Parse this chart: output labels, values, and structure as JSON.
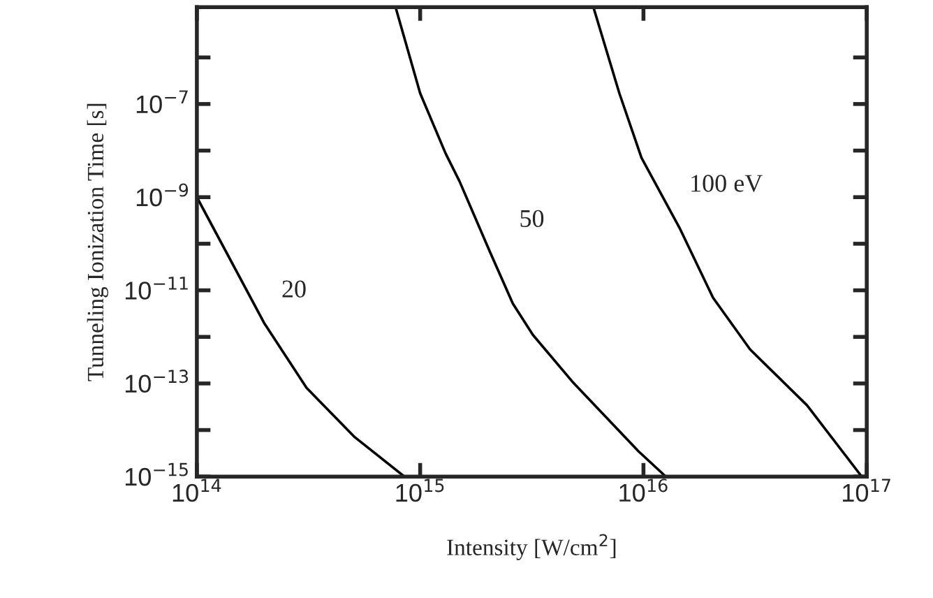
{
  "chart_data": {
    "type": "line",
    "xlabel": "Intensity [W/cm$^{2}$]",
    "ylabel": "Tunneling Ionization Time [s]",
    "log": "xy",
    "grid": false,
    "marker": "none",
    "line_style": "solid",
    "xlim": [
      100000000000000.0,
      1e+17
    ],
    "ylim": [
      1e-15,
      1.2e-05
    ],
    "xticks": [
      {
        "value": 100000000000000.0,
        "label": "10$^{14}$"
      },
      {
        "value": 1000000000000000.0,
        "label": "10$^{15}$"
      },
      {
        "value": 1e+16,
        "label": "10$^{16}$"
      },
      {
        "value": 1e+17,
        "label": "10$^{17}$"
      }
    ],
    "yticks": [
      {
        "value": 1e-15,
        "label": "10$^{−15}$"
      },
      {
        "value": 1e-14,
        "label": null
      },
      {
        "value": 1e-13,
        "label": "10$^{−13}$"
      },
      {
        "value": 1e-12,
        "label": null
      },
      {
        "value": 1e-11,
        "label": "10$^{−11}$"
      },
      {
        "value": 1e-10,
        "label": null
      },
      {
        "value": 1e-09,
        "label": "10$^{−9}$"
      },
      {
        "value": 1e-08,
        "label": null
      },
      {
        "value": 1e-07,
        "label": "10$^{−7}$"
      },
      {
        "value": 1e-06,
        "label": null
      }
    ],
    "series": [
      {
        "color": "#000000",
        "x": [
          100000000000000.0,
          200000000000000.0,
          310000000000000.0,
          510000000000000.0,
          850000000000000.0
        ],
        "values": [
          1e-09,
          2e-12,
          8e-14,
          7e-15,
          1e-15
        ]
      },
      {
        "color": "#000000",
        "x": [
          780000000000000.0,
          1000000000000000.0,
          1300000000000000.0,
          1500000000000000.0,
          2050000000000000.0,
          2600000000000000.0,
          3200000000000000.0,
          4800000000000000.0,
          9500000000000000.0,
          1.26e+16
        ],
        "values": [
          1.1e-05,
          1.7e-07,
          8.7e-09,
          2.2e-09,
          6.8e-11,
          5.2e-12,
          1.1e-12,
          1.1e-13,
          3.5e-15,
          1e-15
        ]
      },
      {
        "color": "#000000",
        "x": [
          6000000000000000.0,
          7800000000000000.0,
          9800000000000000.0,
          1.45e+16,
          2.05e+16,
          3e+16,
          5.4e+16,
          9.5e+16
        ],
        "values": [
          1.1e-05,
          1.7e-07,
          7e-09,
          2.2e-10,
          6.9e-12,
          5.4e-13,
          3.4e-14,
          1e-15
        ]
      }
    ],
    "annotations": [
      "20",
      "50",
      "100 eV"
    ]
  }
}
